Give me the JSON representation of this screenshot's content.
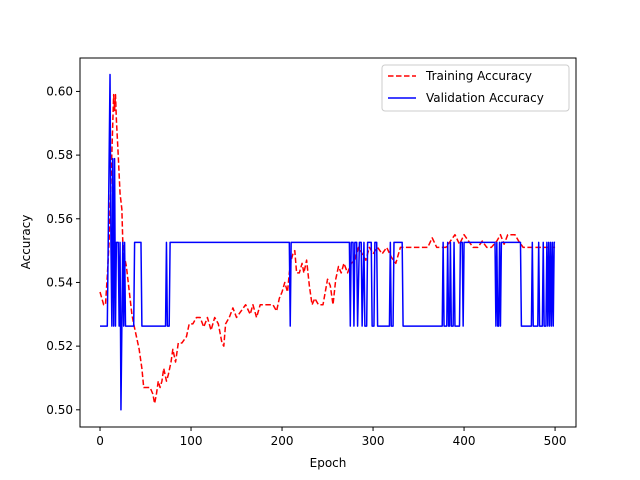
{
  "chart_data": {
    "type": "line",
    "title": "",
    "xlabel": "Epoch",
    "ylabel": "Accuracy",
    "xlim": [
      -22,
      523
    ],
    "ylim": [
      0.4946,
      0.6105
    ],
    "xticks": [
      0,
      100,
      200,
      300,
      400,
      500
    ],
    "yticks": [
      0.5,
      0.52,
      0.54,
      0.56,
      0.58,
      0.6
    ],
    "ytick_labels": [
      "0.50",
      "0.52",
      "0.54",
      "0.56",
      "0.58",
      "0.60"
    ],
    "grid": false,
    "legend_position": "top-right",
    "series": [
      {
        "name": "Training Accuracy",
        "color": "#ff0000",
        "style": "dashed",
        "points": [
          [
            0,
            0.537
          ],
          [
            2,
            0.535
          ],
          [
            4,
            0.533
          ],
          [
            6,
            0.533
          ],
          [
            8,
            0.542
          ],
          [
            10,
            0.553
          ],
          [
            12,
            0.571
          ],
          [
            14,
            0.59
          ],
          [
            15,
            0.599
          ],
          [
            16,
            0.594
          ],
          [
            17,
            0.599
          ],
          [
            18,
            0.591
          ],
          [
            20,
            0.58
          ],
          [
            22,
            0.568
          ],
          [
            24,
            0.563
          ],
          [
            25,
            0.553
          ],
          [
            27,
            0.548
          ],
          [
            29,
            0.545
          ],
          [
            31,
            0.54
          ],
          [
            33,
            0.535
          ],
          [
            35,
            0.53
          ],
          [
            37,
            0.527
          ],
          [
            40,
            0.523
          ],
          [
            43,
            0.519
          ],
          [
            46,
            0.513
          ],
          [
            48,
            0.507
          ],
          [
            52,
            0.507
          ],
          [
            55,
            0.507
          ],
          [
            58,
            0.505
          ],
          [
            60,
            0.502
          ],
          [
            62,
            0.505
          ],
          [
            64,
            0.509
          ],
          [
            66,
            0.507
          ],
          [
            68,
            0.509
          ],
          [
            70,
            0.513
          ],
          [
            73,
            0.509
          ],
          [
            75,
            0.511
          ],
          [
            78,
            0.515
          ],
          [
            80,
            0.519
          ],
          [
            83,
            0.515
          ],
          [
            86,
            0.521
          ],
          [
            90,
            0.521
          ],
          [
            95,
            0.523
          ],
          [
            98,
            0.527
          ],
          [
            102,
            0.527
          ],
          [
            106,
            0.529
          ],
          [
            110,
            0.529
          ],
          [
            114,
            0.526
          ],
          [
            118,
            0.529
          ],
          [
            122,
            0.525
          ],
          [
            126,
            0.529
          ],
          [
            130,
            0.527
          ],
          [
            134,
            0.521
          ],
          [
            136,
            0.52
          ],
          [
            138,
            0.527
          ],
          [
            142,
            0.529
          ],
          [
            146,
            0.532
          ],
          [
            150,
            0.529
          ],
          [
            155,
            0.531
          ],
          [
            160,
            0.533
          ],
          [
            165,
            0.53
          ],
          [
            168,
            0.533
          ],
          [
            172,
            0.529
          ],
          [
            176,
            0.533
          ],
          [
            180,
            0.533
          ],
          [
            185,
            0.533
          ],
          [
            190,
            0.533
          ],
          [
            194,
            0.531
          ],
          [
            197,
            0.535
          ],
          [
            200,
            0.537
          ],
          [
            203,
            0.54
          ],
          [
            206,
            0.537
          ],
          [
            208,
            0.543
          ],
          [
            210,
            0.547
          ],
          [
            212,
            0.549
          ],
          [
            214,
            0.55
          ],
          [
            216,
            0.543
          ],
          [
            219,
            0.543
          ],
          [
            222,
            0.546
          ],
          [
            224,
            0.543
          ],
          [
            227,
            0.547
          ],
          [
            230,
            0.539
          ],
          [
            233,
            0.533
          ],
          [
            236,
            0.535
          ],
          [
            240,
            0.533
          ],
          [
            245,
            0.533
          ],
          [
            250,
            0.541
          ],
          [
            253,
            0.539
          ],
          [
            256,
            0.533
          ],
          [
            259,
            0.541
          ],
          [
            262,
            0.545
          ],
          [
            265,
            0.543
          ],
          [
            268,
            0.546
          ],
          [
            272,
            0.543
          ],
          [
            276,
            0.546
          ],
          [
            280,
            0.547
          ],
          [
            284,
            0.551
          ],
          [
            288,
            0.549
          ],
          [
            292,
            0.547
          ],
          [
            296,
            0.551
          ],
          [
            300,
            0.549
          ],
          [
            305,
            0.551
          ],
          [
            310,
            0.549
          ],
          [
            315,
            0.551
          ],
          [
            320,
            0.548
          ],
          [
            325,
            0.546
          ],
          [
            330,
            0.551
          ],
          [
            340,
            0.551
          ],
          [
            350,
            0.551
          ],
          [
            360,
            0.551
          ],
          [
            365,
            0.554
          ],
          [
            370,
            0.551
          ],
          [
            380,
            0.551
          ],
          [
            385,
            0.553
          ],
          [
            390,
            0.555
          ],
          [
            395,
            0.552
          ],
          [
            400,
            0.555
          ],
          [
            405,
            0.553
          ],
          [
            410,
            0.551
          ],
          [
            415,
            0.551
          ],
          [
            420,
            0.553
          ],
          [
            425,
            0.551
          ],
          [
            430,
            0.551
          ],
          [
            436,
            0.553
          ],
          [
            440,
            0.555
          ],
          [
            444,
            0.552
          ],
          [
            448,
            0.555
          ],
          [
            452,
            0.555
          ],
          [
            456,
            0.555
          ],
          [
            460,
            0.553
          ],
          [
            465,
            0.551
          ],
          [
            470,
            0.551
          ],
          [
            480,
            0.551
          ],
          [
            490,
            0.551
          ],
          [
            500,
            0.551
          ]
        ]
      },
      {
        "name": "Validation Accuracy",
        "color": "#0000ff",
        "style": "solid",
        "points": [
          [
            0,
            0.5263
          ],
          [
            8,
            0.5263
          ],
          [
            9,
            0.5526
          ],
          [
            10,
            0.5789
          ],
          [
            11,
            0.6053
          ],
          [
            12,
            0.5526
          ],
          [
            13,
            0.5263
          ],
          [
            14,
            0.5789
          ],
          [
            15,
            0.5263
          ],
          [
            16,
            0.5789
          ],
          [
            17,
            0.5263
          ],
          [
            18,
            0.5526
          ],
          [
            20,
            0.5526
          ],
          [
            21,
            0.5263
          ],
          [
            22,
            0.5526
          ],
          [
            23,
            0.5
          ],
          [
            24,
            0.5263
          ],
          [
            25,
            0.5526
          ],
          [
            26,
            0.5263
          ],
          [
            27,
            0.5526
          ],
          [
            28,
            0.5263
          ],
          [
            37,
            0.5263
          ],
          [
            38,
            0.5526
          ],
          [
            45,
            0.5526
          ],
          [
            46,
            0.5263
          ],
          [
            72,
            0.5263
          ],
          [
            73,
            0.5526
          ],
          [
            74,
            0.5263
          ],
          [
            76,
            0.5263
          ],
          [
            77,
            0.5526
          ],
          [
            208,
            0.5526
          ],
          [
            209,
            0.5263
          ],
          [
            210,
            0.5526
          ],
          [
            274,
            0.5526
          ],
          [
            275,
            0.5263
          ],
          [
            276,
            0.5526
          ],
          [
            278,
            0.5526
          ],
          [
            279,
            0.5263
          ],
          [
            280,
            0.5526
          ],
          [
            282,
            0.5526
          ],
          [
            283,
            0.5263
          ],
          [
            285,
            0.5526
          ],
          [
            287,
            0.5526
          ],
          [
            288,
            0.5263
          ],
          [
            290,
            0.5526
          ],
          [
            291,
            0.5263
          ],
          [
            293,
            0.5263
          ],
          [
            294,
            0.5526
          ],
          [
            298,
            0.5526
          ],
          [
            299,
            0.5263
          ],
          [
            301,
            0.5263
          ],
          [
            302,
            0.5526
          ],
          [
            304,
            0.5526
          ],
          [
            305,
            0.5263
          ],
          [
            318,
            0.5263
          ],
          [
            319,
            0.5526
          ],
          [
            320,
            0.5263
          ],
          [
            322,
            0.5263
          ],
          [
            323,
            0.5526
          ],
          [
            332,
            0.5526
          ],
          [
            333,
            0.5263
          ],
          [
            376,
            0.5263
          ],
          [
            377,
            0.5526
          ],
          [
            378,
            0.5263
          ],
          [
            381,
            0.5263
          ],
          [
            382,
            0.5526
          ],
          [
            383,
            0.5263
          ],
          [
            384,
            0.5263
          ],
          [
            385,
            0.5526
          ],
          [
            386,
            0.5263
          ],
          [
            388,
            0.5263
          ],
          [
            389,
            0.5526
          ],
          [
            390,
            0.5263
          ],
          [
            395,
            0.5263
          ],
          [
            396,
            0.5526
          ],
          [
            398,
            0.5526
          ],
          [
            399,
            0.5263
          ],
          [
            400,
            0.5526
          ],
          [
            434,
            0.5526
          ],
          [
            435,
            0.5263
          ],
          [
            436,
            0.5526
          ],
          [
            437,
            0.5263
          ],
          [
            438,
            0.5263
          ],
          [
            439,
            0.5526
          ],
          [
            440,
            0.5263
          ],
          [
            441,
            0.5526
          ],
          [
            462,
            0.5526
          ],
          [
            463,
            0.5263
          ],
          [
            474,
            0.5263
          ],
          [
            475,
            0.5526
          ],
          [
            476,
            0.5263
          ],
          [
            481,
            0.5263
          ],
          [
            482,
            0.5526
          ],
          [
            483,
            0.5263
          ],
          [
            486,
            0.5263
          ],
          [
            487,
            0.5526
          ],
          [
            488,
            0.5263
          ],
          [
            490,
            0.5263
          ],
          [
            491,
            0.5526
          ],
          [
            492,
            0.5263
          ],
          [
            493,
            0.5526
          ],
          [
            494,
            0.5263
          ],
          [
            495,
            0.5526
          ],
          [
            496,
            0.5263
          ],
          [
            497,
            0.5526
          ],
          [
            498,
            0.5263
          ],
          [
            499,
            0.5526
          ],
          [
            500,
            0.5526
          ]
        ]
      }
    ]
  }
}
